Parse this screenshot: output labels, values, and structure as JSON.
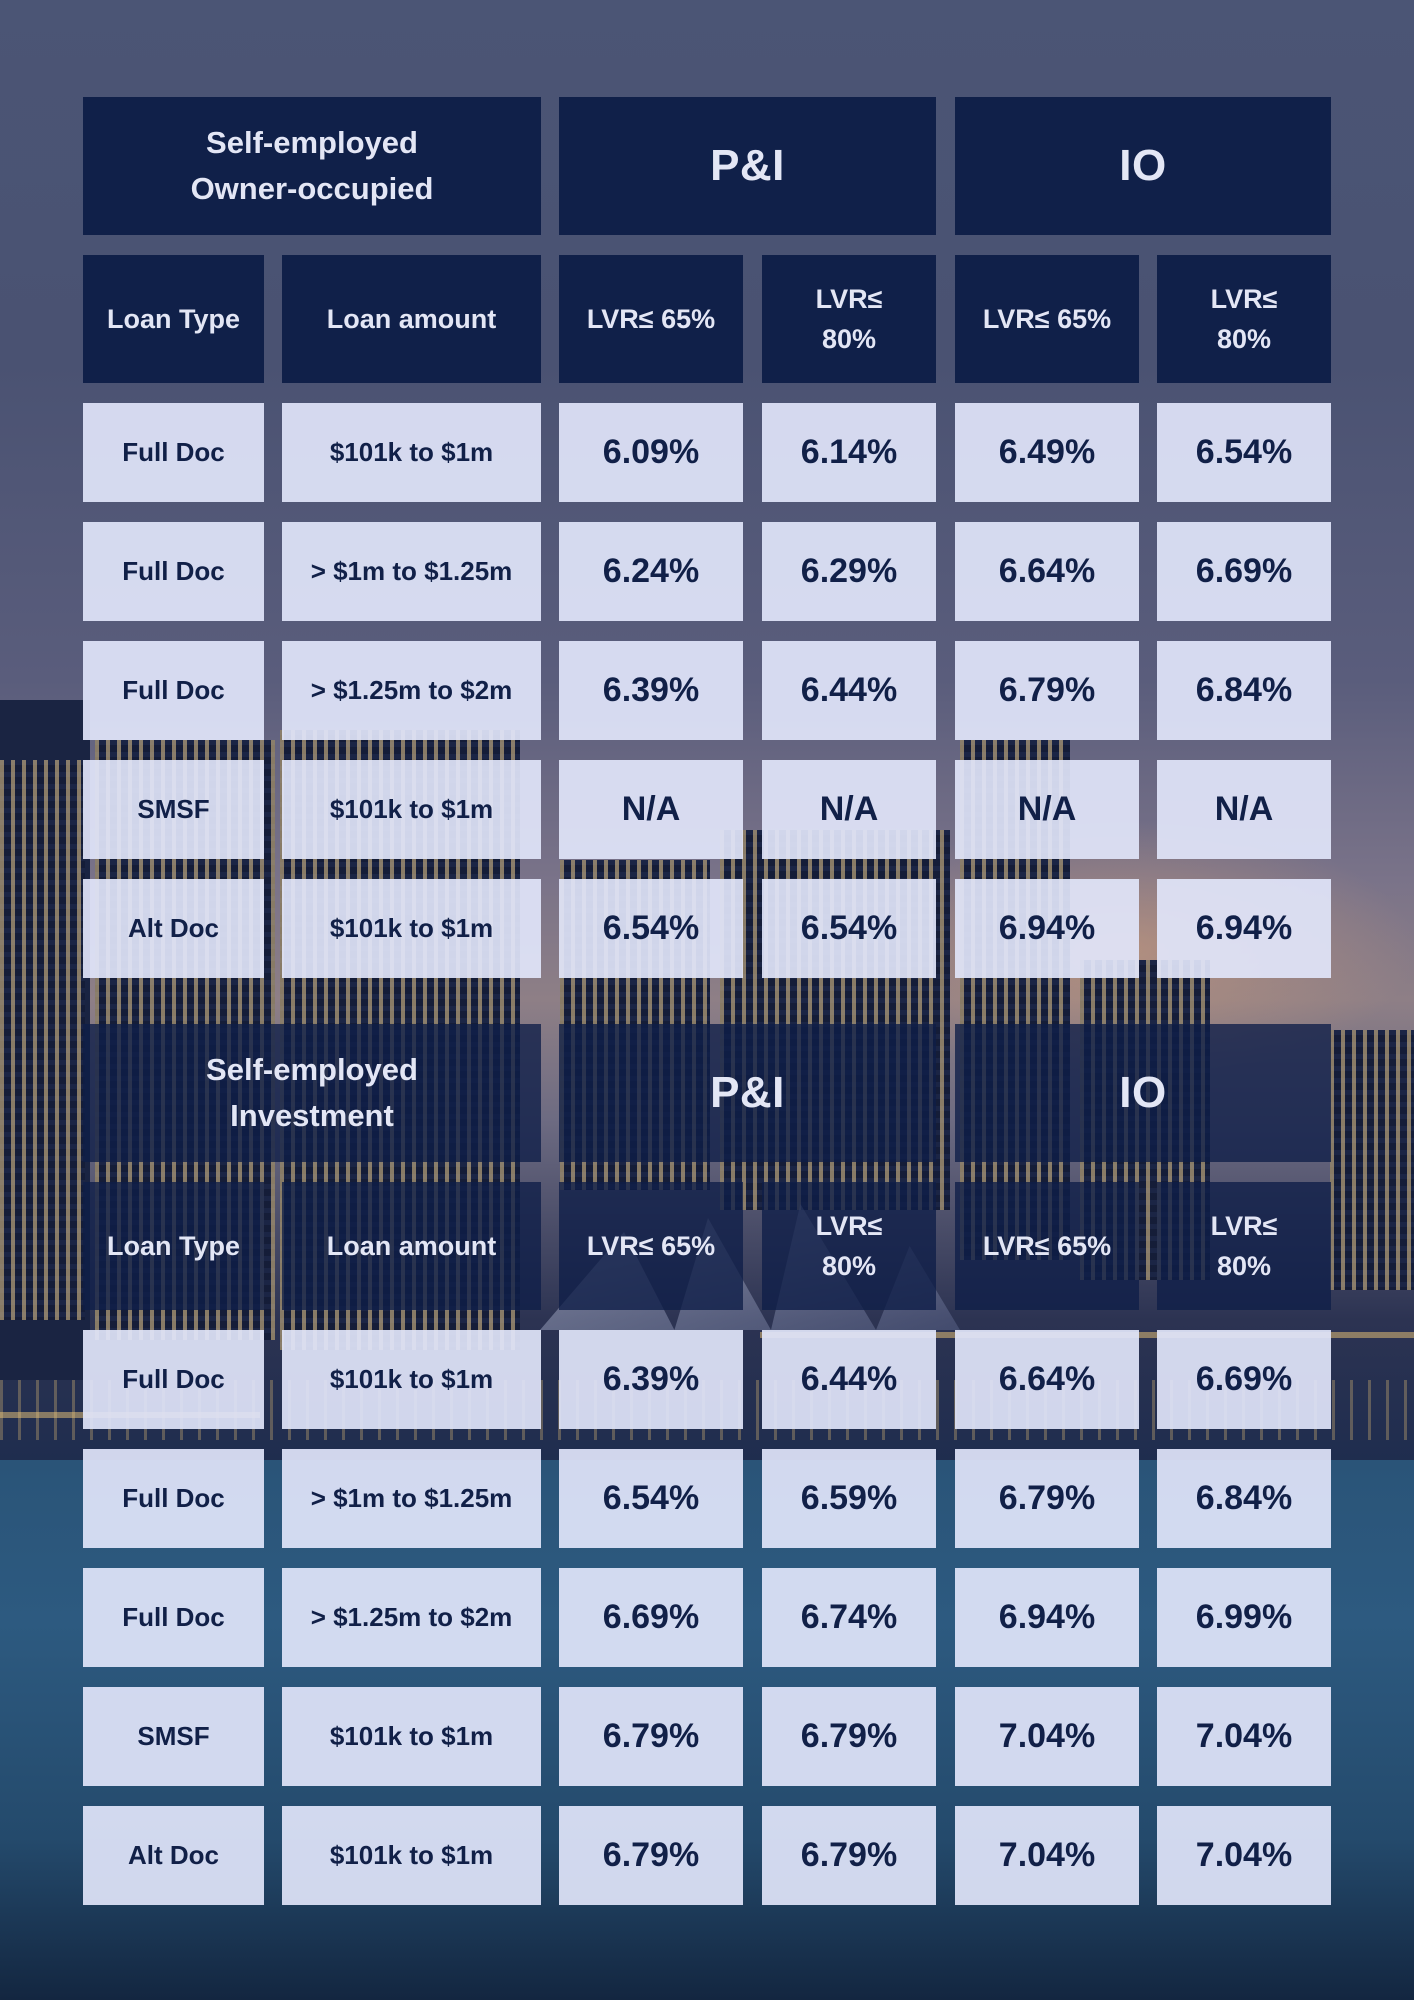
{
  "tables": [
    {
      "title": "Self-employed\nOwner-occupied",
      "group_pi": "P&I",
      "group_io": "IO",
      "sub_headers": [
        "Loan Type",
        "Loan amount",
        "LVR≤ 65%",
        "LVR≤\n80%",
        "LVR≤ 65%",
        "LVR≤\n80%"
      ],
      "rows": [
        [
          "Full Doc",
          "$101k to $1m",
          "6.09%",
          "6.14%",
          "6.49%",
          "6.54%"
        ],
        [
          "Full Doc",
          "> $1m to $1.25m",
          "6.24%",
          "6.29%",
          "6.64%",
          "6.69%"
        ],
        [
          "Full Doc",
          "> $1.25m to $2m",
          "6.39%",
          "6.44%",
          "6.79%",
          "6.84%"
        ],
        [
          "SMSF",
          "$101k to $1m",
          "N/A",
          "N/A",
          "N/A",
          "N/A"
        ],
        [
          "Alt Doc",
          "$101k to $1m",
          "6.54%",
          "6.54%",
          "6.94%",
          "6.94%"
        ]
      ]
    },
    {
      "title": "Self-employed\nInvestment",
      "group_pi": "P&I",
      "group_io": "IO",
      "sub_headers": [
        "Loan Type",
        "Loan amount",
        "LVR≤ 65%",
        "LVR≤\n80%",
        "LVR≤ 65%",
        "LVR≤\n80%"
      ],
      "rows": [
        [
          "Full Doc",
          "$101k to $1m",
          "6.39%",
          "6.44%",
          "6.64%",
          "6.69%"
        ],
        [
          "Full Doc",
          "> $1m to $1.25m",
          "6.54%",
          "6.59%",
          "6.79%",
          "6.84%"
        ],
        [
          "Full Doc",
          "> $1.25m to $2m",
          "6.69%",
          "6.74%",
          "6.94%",
          "6.99%"
        ],
        [
          "SMSF",
          "$101k to $1m",
          "6.79%",
          "6.79%",
          "7.04%",
          "7.04%"
        ],
        [
          "Alt Doc",
          "$101k to $1m",
          "6.79%",
          "6.79%",
          "7.04%",
          "7.04%"
        ]
      ]
    }
  ],
  "colors": {
    "header_bg": "#0e1e48",
    "header_text": "#e3e6f5",
    "cell_bg": "#e1e5fa",
    "cell_text": "#112048"
  }
}
